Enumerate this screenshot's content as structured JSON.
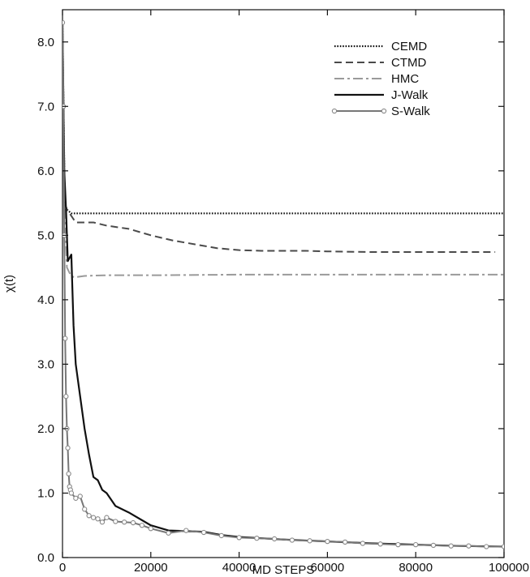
{
  "chart_data": {
    "type": "line",
    "xlabel": "MD STEPS",
    "ylabel": "χ(t)",
    "xlim": [
      0,
      100000
    ],
    "ylim": [
      0,
      8.5
    ],
    "x_ticks": [
      0,
      20000,
      40000,
      60000,
      80000,
      100000
    ],
    "x_tick_labels": [
      "0",
      "20000",
      "40000",
      "60000",
      "80000",
      "100000"
    ],
    "y_ticks": [
      0,
      1,
      2,
      3,
      4,
      5,
      6,
      7,
      8
    ],
    "y_tick_labels": [
      "0.0",
      "1.0",
      "2.0",
      "3.0",
      "4.0",
      "5.0",
      "6.0",
      "7.0",
      "8.0"
    ],
    "grid": false,
    "legend_position": "top-right",
    "series": [
      {
        "name": "CEMD",
        "style": "dotted",
        "color": "#111111",
        "x": [
          0,
          500,
          1000,
          2000,
          100000
        ],
        "y": [
          8.3,
          5.5,
          5.4,
          5.34,
          5.34
        ]
      },
      {
        "name": "CTMD",
        "style": "dashed",
        "color": "#4a4a4a",
        "x": [
          0,
          500,
          1000,
          2000,
          3000,
          5000,
          7000,
          10000,
          15000,
          20000,
          25000,
          30000,
          35000,
          40000,
          45000,
          50000,
          55000,
          60000,
          70000,
          80000,
          90000,
          98000
        ],
        "y": [
          8.3,
          5.5,
          5.4,
          5.3,
          5.2,
          5.2,
          5.2,
          5.15,
          5.1,
          5.0,
          4.92,
          4.86,
          4.8,
          4.77,
          4.76,
          4.76,
          4.76,
          4.75,
          4.74,
          4.74,
          4.74,
          4.74
        ]
      },
      {
        "name": "HMC",
        "style": "dashdot",
        "color": "#9a9a9a",
        "x": [
          0,
          500,
          1000,
          2000,
          3000,
          5000,
          10000,
          20000,
          40000,
          60000,
          80000,
          100000
        ],
        "y": [
          8.3,
          5.4,
          4.5,
          4.36,
          4.35,
          4.37,
          4.38,
          4.38,
          4.39,
          4.39,
          4.39,
          4.39
        ]
      },
      {
        "name": "J-Walk",
        "style": "solid",
        "color": "#111111",
        "x": [
          0,
          400,
          800,
          1200,
          1600,
          2000,
          2500,
          3000,
          4000,
          5000,
          6000,
          7000,
          8000,
          9000,
          10000,
          12000,
          15000,
          20000,
          24000,
          28000,
          32000,
          36000,
          40000,
          50000,
          60000,
          70000,
          80000,
          90000,
          100000
        ],
        "y": [
          8.3,
          6.0,
          5.4,
          4.6,
          4.65,
          4.7,
          3.6,
          3.0,
          2.5,
          2.0,
          1.6,
          1.25,
          1.2,
          1.05,
          1.0,
          0.8,
          0.7,
          0.5,
          0.42,
          0.41,
          0.4,
          0.35,
          0.32,
          0.28,
          0.25,
          0.22,
          0.2,
          0.18,
          0.17
        ]
      },
      {
        "name": "S-Walk",
        "style": "solid-markers",
        "color": "#777777",
        "x": [
          0,
          200,
          400,
          600,
          800,
          1000,
          1200,
          1400,
          1600,
          1800,
          2000,
          3000,
          4000,
          5000,
          6000,
          7000,
          8000,
          9000,
          10000,
          12000,
          14000,
          16000,
          18000,
          20000,
          24000,
          28000,
          32000,
          36000,
          40000,
          44000,
          48000,
          52000,
          56000,
          60000,
          64000,
          68000,
          72000,
          76000,
          80000,
          84000,
          88000,
          92000,
          96000,
          100000
        ],
        "y": [
          8.3,
          7.0,
          5.0,
          3.4,
          2.5,
          2.0,
          1.7,
          1.3,
          1.1,
          1.05,
          1.0,
          0.92,
          0.95,
          0.75,
          0.65,
          0.62,
          0.6,
          0.55,
          0.62,
          0.56,
          0.55,
          0.54,
          0.5,
          0.45,
          0.38,
          0.42,
          0.39,
          0.34,
          0.31,
          0.3,
          0.29,
          0.27,
          0.26,
          0.25,
          0.24,
          0.22,
          0.21,
          0.2,
          0.2,
          0.19,
          0.18,
          0.18,
          0.17,
          0.17
        ]
      }
    ]
  }
}
